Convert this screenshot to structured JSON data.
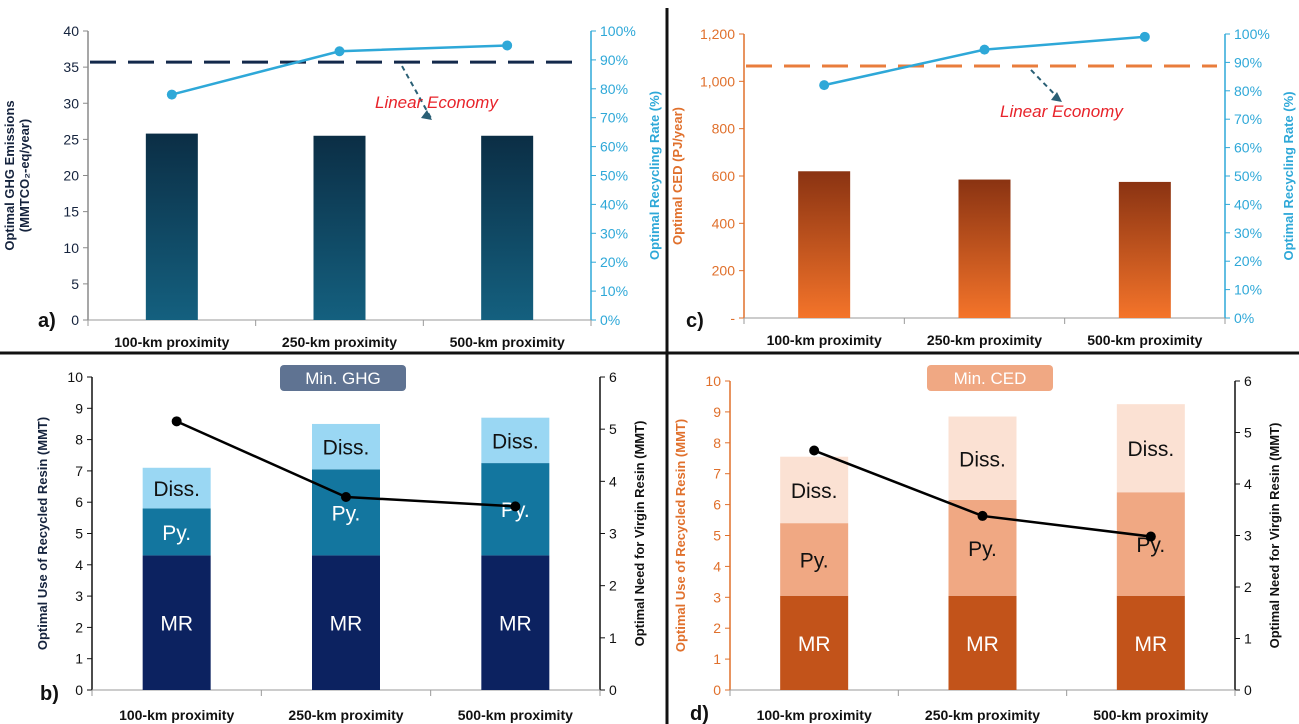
{
  "colors": {
    "navy_top": "#0b2e45",
    "navy_bottom": "#14607f",
    "orange_top": "#8a3312",
    "orange_bottom": "#f4742a",
    "cyan": "#2ea8d8",
    "dash_navy": "#13294b",
    "dash_orange": "#e97d3c",
    "linear_text": "#e8232a",
    "mr_navy": "#0c2260",
    "py_teal": "#13769f",
    "diss_light": "#9ad7f3",
    "mr_orange": "#c2531a",
    "py_peach": "#f0a883",
    "diss_peach": "#fbe1d3",
    "badge_ghg": "#5f7392",
    "badge_ced": "#f0a883",
    "axis_orange": "#e0702c"
  },
  "chart_data": [
    {
      "id": "a",
      "type": "bar",
      "panel_label": "a)",
      "categories": [
        "100-km proximity",
        "250-km proximity",
        "500-km proximity"
      ],
      "series": [
        {
          "values": [
            25.8,
            25.5,
            25.5
          ]
        },
        {
          "values": [
            78,
            93,
            95
          ]
        }
      ],
      "ylabel_line1": "Optimal GHG Emissions",
      "ylabel_line2": "(MMTCO₂-eq/year)",
      "ylabel_right": "Optimal Recycling Rate (%)",
      "ylim": [
        0,
        40
      ],
      "y_ticks": [
        "0",
        "5",
        "10",
        "15",
        "20",
        "25",
        "30",
        "35",
        "40"
      ],
      "ylim_right": [
        0,
        100
      ],
      "y_right_ticks": [
        "0%",
        "10%",
        "20%",
        "30%",
        "40%",
        "50%",
        "60%",
        "70%",
        "80%",
        "90%",
        "100%"
      ],
      "reference_value": 35.7,
      "reference_label": "Linear Economy",
      "grid": false
    },
    {
      "id": "c",
      "type": "bar",
      "panel_label": "c)",
      "categories": [
        "100-km proximity",
        "250-km proximity",
        "500-km proximity"
      ],
      "series": [
        {
          "values": [
            620,
            585,
            575
          ]
        },
        {
          "values": [
            82,
            94.5,
            99
          ]
        }
      ],
      "ylabel": "Optimal CED (PJ/year)",
      "ylabel_right": "Optimal Recycling Rate (%)",
      "ylim": [
        0,
        1200
      ],
      "y_ticks": [
        "-",
        "200",
        "400",
        "600",
        "800",
        "1,000",
        "1,200"
      ],
      "ylim_right": [
        0,
        100
      ],
      "y_right_ticks": [
        "0%",
        "10%",
        "20%",
        "30%",
        "40%",
        "50%",
        "60%",
        "70%",
        "80%",
        "90%",
        "100%"
      ],
      "reference_value": 1065,
      "reference_label": "Linear Economy",
      "grid": false
    },
    {
      "id": "b",
      "type": "bar",
      "stacked": true,
      "panel_label": "b)",
      "badge": "Min. GHG",
      "categories": [
        "100-km proximity",
        "250-km proximity",
        "500-km proximity"
      ],
      "series": [
        {
          "name": "MR",
          "values": [
            4.3,
            4.3,
            4.3
          ]
        },
        {
          "name": "Py.",
          "values": [
            1.5,
            2.75,
            2.95
          ]
        },
        {
          "name": "Diss.",
          "values": [
            1.3,
            1.45,
            1.45
          ]
        }
      ],
      "line_series": {
        "values": [
          5.15,
          3.7,
          3.52
        ]
      },
      "ylabel": "Optimal Use of Recycled Resin (MMT)",
      "ylabel_right": "Optimal Need for Virgin Resin (MMT)",
      "ylim": [
        0,
        10
      ],
      "y_ticks": [
        "0",
        "1",
        "2",
        "3",
        "4",
        "5",
        "6",
        "7",
        "8",
        "9",
        "10"
      ],
      "ylim_right": [
        0,
        6
      ],
      "y_right_ticks": [
        "0",
        "1",
        "2",
        "3",
        "4",
        "5",
        "6"
      ],
      "grid": false
    },
    {
      "id": "d",
      "type": "bar",
      "stacked": true,
      "panel_label": "d)",
      "badge": "Min. CED",
      "categories": [
        "100-km proximity",
        "250-km proximity",
        "500-km proximity"
      ],
      "series": [
        {
          "name": "MR",
          "values": [
            3.05,
            3.05,
            3.05
          ]
        },
        {
          "name": "Py.",
          "values": [
            2.35,
            3.1,
            3.35
          ]
        },
        {
          "name": "Diss.",
          "values": [
            2.15,
            2.7,
            2.85
          ]
        }
      ],
      "line_series": {
        "values": [
          4.65,
          3.38,
          2.98
        ]
      },
      "ylabel": "Optimal Use of Recycled Resin (MMT)",
      "ylabel_right": "Optimal Need for Virgin Resin (MMT)",
      "ylim": [
        0,
        10
      ],
      "y_ticks": [
        "0",
        "1",
        "2",
        "3",
        "4",
        "5",
        "6",
        "7",
        "8",
        "9",
        "10"
      ],
      "ylim_right": [
        0,
        6
      ],
      "y_right_ticks": [
        "0",
        "1",
        "2",
        "3",
        "4",
        "5",
        "6"
      ],
      "grid": false
    }
  ]
}
